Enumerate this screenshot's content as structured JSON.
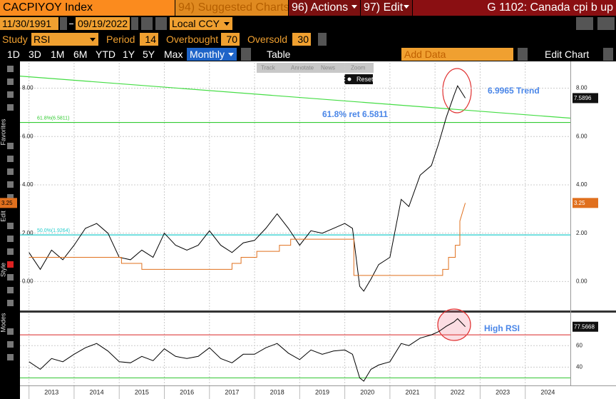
{
  "header": {
    "ticker": "CACPIYOY Index",
    "suggested": "94) Suggested Charts",
    "actions": "96) Actions",
    "edit": "97) Edit",
    "title": "G 1102: Canada cpi b up"
  },
  "controls": {
    "start_date": "11/30/1991",
    "end_date": "09/19/2022",
    "currency": "Local CCY",
    "study_label": "Study",
    "study": "RSI",
    "period_label": "Period",
    "period": 14,
    "overbought_label": "Overbought",
    "overbought": 70,
    "oversold_label": "Oversold",
    "oversold": 30
  },
  "toolbar": {
    "ranges": [
      "1D",
      "3D",
      "1M",
      "6M",
      "YTD",
      "1Y",
      "5Y",
      "Max"
    ],
    "frequency": "Monthly",
    "table": "Table",
    "add_data": "Add Data",
    "edit_chart": "Edit Chart"
  },
  "chart_tools": [
    "Track",
    "Annotate",
    "News",
    "Zoom"
  ],
  "reset": "Reset",
  "sidebar": [
    "Favorites",
    "Edit",
    "Style",
    "Modes"
  ],
  "chart_data": [
    {
      "type": "line",
      "xlim": [
        2012.8,
        2025
      ],
      "xticks": [
        2013,
        2014,
        2015,
        2016,
        2017,
        2018,
        2019,
        2020,
        2021,
        2022,
        2023,
        2024
      ],
      "ylim": [
        -1.2,
        9.05
      ],
      "yticks": [
        {
          "value": 0,
          "label": "0.00"
        },
        {
          "value": 2,
          "label": "2.00"
        },
        {
          "value": 4,
          "label": "4.00"
        },
        {
          "value": 6,
          "label": "6.00"
        },
        {
          "value": 8,
          "label": "8.00"
        }
      ],
      "grid": true,
      "series": [
        {
          "color": "#000000",
          "x": [
            2013,
            2013.25,
            2013.5,
            2013.75,
            2014,
            2014.25,
            2014.5,
            2014.75,
            2015,
            2015.25,
            2015.5,
            2015.75,
            2016,
            2016.25,
            2016.5,
            2016.75,
            2017,
            2017.25,
            2017.5,
            2017.75,
            2018,
            2018.25,
            2018.5,
            2018.75,
            2019,
            2019.25,
            2019.5,
            2019.75,
            2020,
            2020.17,
            2020.33,
            2020.42,
            2020.58,
            2020.75,
            2021,
            2021.25,
            2021.42,
            2021.67,
            2021.92,
            2022.08,
            2022.25,
            2022.42,
            2022.5,
            2022.67
          ],
          "values": [
            1.2,
            0.5,
            1.3,
            0.9,
            1.5,
            2.2,
            2.4,
            2.0,
            1.0,
            0.9,
            1.3,
            1.0,
            2.0,
            1.5,
            1.3,
            1.5,
            2.1,
            1.5,
            1.2,
            1.6,
            1.7,
            2.2,
            2.8,
            2.2,
            1.5,
            2.1,
            2.0,
            2.2,
            2.4,
            2.2,
            -0.2,
            -0.4,
            0.1,
            0.7,
            1.0,
            3.4,
            3.1,
            4.4,
            4.8,
            5.7,
            6.8,
            7.7,
            8.1,
            7.5896
          ]
        },
        {
          "color": "#e0701e",
          "x": [
            2013,
            2015.05,
            2015.05,
            2015.5,
            2015.5,
            2017.5,
            2017.5,
            2017.7,
            2017.7,
            2018.05,
            2018.05,
            2018.55,
            2018.55,
            2018.8,
            2018.8,
            2020.2,
            2020.2,
            2022.17,
            2022.17,
            2022.3,
            2022.3,
            2022.45,
            2022.45,
            2022.55,
            2022.55,
            2022.67
          ],
          "values": [
            1,
            1,
            0.75,
            0.75,
            0.5,
            0.5,
            0.75,
            0.75,
            1,
            1,
            1.25,
            1.25,
            1.5,
            1.5,
            1.75,
            1.75,
            0.25,
            0.25,
            0.5,
            0.5,
            1,
            1,
            1.5,
            1.5,
            2.5,
            3.25
          ]
        }
      ],
      "trend_line": {
        "label": "6.9965 Trend",
        "values": [
          8.5,
          6.76
        ],
        "color": "#44dd44"
      },
      "retracements": [
        {
          "value": 6.5811,
          "label": "61.8%(6.5811)",
          "color": "#33cc33"
        },
        {
          "value": 1.9264,
          "label": "50.0%(1.9264)",
          "color": "#22cccc"
        }
      ],
      "annotation": "61.8% ret 6.5811"
    },
    {
      "type": "line",
      "xlim": [
        2012.8,
        2025
      ],
      "xticks": [
        2013,
        2014,
        2015,
        2016,
        2017,
        2018,
        2019,
        2020,
        2021,
        2022,
        2023,
        2024
      ],
      "ylim": [
        23,
        90
      ],
      "yticks": [
        40,
        60
      ],
      "grid": true,
      "series": [
        {
          "color": "#000000",
          "x": [
            2013,
            2013.25,
            2013.5,
            2013.75,
            2014,
            2014.25,
            2014.5,
            2014.75,
            2015,
            2015.25,
            2015.5,
            2015.75,
            2016,
            2016.25,
            2016.5,
            2016.75,
            2017,
            2017.25,
            2017.5,
            2017.75,
            2018,
            2018.25,
            2018.5,
            2018.75,
            2019,
            2019.25,
            2019.5,
            2019.75,
            2020,
            2020.17,
            2020.33,
            2020.42,
            2020.58,
            2020.75,
            2021,
            2021.25,
            2021.42,
            2021.67,
            2021.92,
            2022.08,
            2022.25,
            2022.42,
            2022.5,
            2022.67
          ],
          "values": [
            45,
            38,
            48,
            45,
            52,
            58,
            62,
            55,
            45,
            44,
            50,
            46,
            57,
            50,
            48,
            50,
            58,
            48,
            44,
            52,
            52,
            58,
            62,
            53,
            47,
            56,
            52,
            55,
            56,
            52,
            30,
            27,
            38,
            42,
            45,
            62,
            60,
            67,
            70,
            73,
            78,
            82,
            85,
            77.5668
          ]
        }
      ],
      "annotation": "High RSI"
    }
  ]
}
